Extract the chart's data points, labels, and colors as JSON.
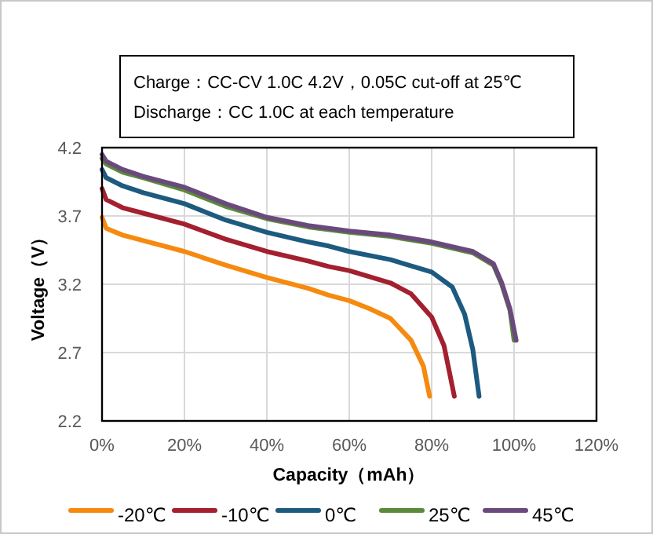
{
  "chart_data": {
    "type": "line",
    "xlabel": "Capacity（mAh）",
    "ylabel": "Voltage（V）",
    "annotations": [
      "Charge：CC-CV 1.0C 4.2V，0.05C cut-off at 25℃",
      "Discharge：CC 1.0C at each temperature"
    ],
    "xlim": [
      0,
      120
    ],
    "ylim": [
      2.2,
      4.2
    ],
    "xticks": [
      {
        "value": 0,
        "label": "0%"
      },
      {
        "value": 20,
        "label": "20%"
      },
      {
        "value": 40,
        "label": "40%"
      },
      {
        "value": 60,
        "label": "60%"
      },
      {
        "value": 80,
        "label": "80%"
      },
      {
        "value": 100,
        "label": "100%"
      },
      {
        "value": 120,
        "label": "120%"
      }
    ],
    "yticks": [
      2.2,
      2.7,
      3.2,
      3.7,
      4.2
    ],
    "grid": true,
    "legend": "bottom",
    "marker": "none",
    "line_style": "solid",
    "series": [
      {
        "name": "-20℃",
        "color": "#f58a0f",
        "x": [
          0,
          1,
          5,
          10,
          20,
          30,
          40,
          50,
          55,
          60,
          65,
          70,
          75,
          78,
          79.5
        ],
        "values": [
          3.69,
          3.61,
          3.56,
          3.52,
          3.44,
          3.34,
          3.25,
          3.17,
          3.12,
          3.08,
          3.02,
          2.95,
          2.79,
          2.6,
          2.38
        ]
      },
      {
        "name": "-10℃",
        "color": "#a3202f",
        "x": [
          0,
          1,
          5,
          10,
          20,
          30,
          40,
          50,
          55,
          60,
          70,
          75,
          80,
          83,
          85.5
        ],
        "values": [
          3.9,
          3.82,
          3.76,
          3.72,
          3.64,
          3.53,
          3.44,
          3.37,
          3.33,
          3.3,
          3.21,
          3.13,
          2.96,
          2.75,
          2.38
        ]
      },
      {
        "name": "0℃",
        "color": "#1d5a80",
        "x": [
          0,
          1,
          5,
          10,
          20,
          30,
          40,
          50,
          55,
          60,
          70,
          80,
          85,
          88,
          90,
          91.5
        ],
        "values": [
          4.04,
          3.98,
          3.92,
          3.87,
          3.79,
          3.67,
          3.58,
          3.51,
          3.48,
          3.44,
          3.38,
          3.29,
          3.18,
          2.98,
          2.72,
          2.38
        ]
      },
      {
        "name": "25℃",
        "color": "#5a8a3a",
        "x": [
          0,
          1,
          5,
          10,
          20,
          30,
          40,
          50,
          60,
          70,
          80,
          90,
          95,
          97,
          99,
          100
        ],
        "values": [
          4.12,
          4.08,
          4.02,
          3.98,
          3.89,
          3.77,
          3.68,
          3.62,
          3.58,
          3.55,
          3.5,
          3.43,
          3.34,
          3.2,
          3.01,
          2.79
        ]
      },
      {
        "name": "45℃",
        "color": "#6a4a7c",
        "x": [
          0,
          1,
          5,
          10,
          20,
          30,
          40,
          50,
          60,
          70,
          80,
          90,
          95,
          97,
          99,
          100.5
        ],
        "values": [
          4.15,
          4.1,
          4.04,
          3.99,
          3.91,
          3.79,
          3.69,
          3.63,
          3.59,
          3.56,
          3.51,
          3.44,
          3.35,
          3.21,
          3.02,
          2.79
        ]
      }
    ]
  }
}
